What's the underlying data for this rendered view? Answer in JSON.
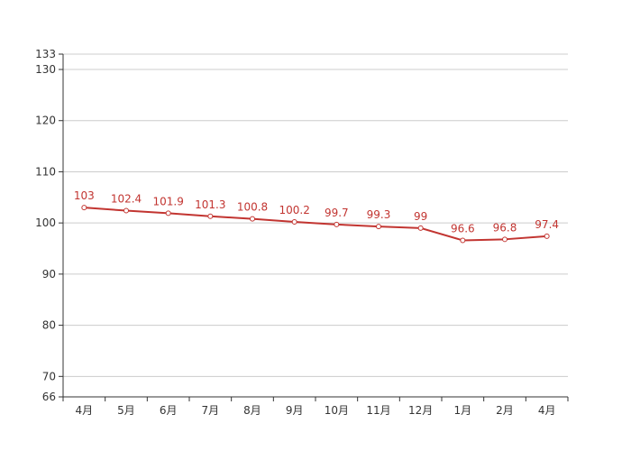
{
  "chart_data": {
    "type": "line",
    "title": "",
    "xlabel": "",
    "ylabel": "",
    "categories": [
      "4月",
      "5月",
      "6月",
      "7月",
      "8月",
      "9月",
      "10月",
      "11月",
      "12月",
      "1月",
      "2月",
      "4月"
    ],
    "series": [
      {
        "values": [
          103,
          102.4,
          101.9,
          101.3,
          100.8,
          100.2,
          99.7,
          99.3,
          99,
          96.6,
          96.8,
          97.4
        ],
        "labels": [
          "103",
          "102.4",
          "101.9",
          "101.3",
          "100.8",
          "100.2",
          "99.7",
          "99.3",
          "99",
          "96.6",
          "96.8",
          "97.4"
        ],
        "color": "#c23531"
      }
    ],
    "ylim": [
      66,
      133
    ],
    "yticks": [
      66,
      70,
      80,
      90,
      100,
      110,
      120,
      130,
      133
    ],
    "ytick_labels": [
      "66",
      "70",
      "80",
      "90",
      "100",
      "110",
      "120",
      "130",
      "133"
    ],
    "grid": true,
    "grid_color": "#cccccc",
    "axis_color": "#333333",
    "legend": "none"
  }
}
